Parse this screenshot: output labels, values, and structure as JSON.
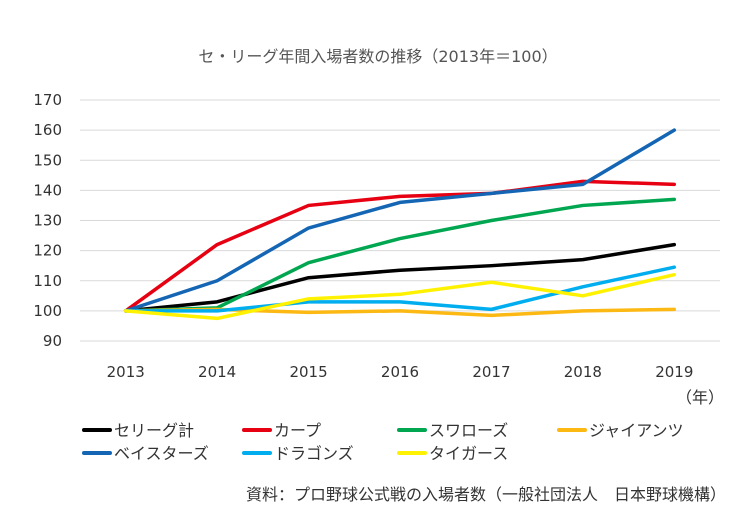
{
  "chart_data": {
    "type": "line",
    "title": "セ・リーグ年間入場者数の推移（2013年＝100）",
    "x": [
      "2013",
      "2014",
      "2015",
      "2016",
      "2017",
      "2018",
      "2019"
    ],
    "x_unit": "（年）",
    "ylim": [
      90,
      170
    ],
    "yticks": [
      90,
      100,
      110,
      120,
      130,
      140,
      150,
      160,
      170
    ],
    "grid": true,
    "legend_position": "bottom",
    "series": [
      {
        "name": "セリーグ計",
        "color": "#000000",
        "values": [
          100,
          103,
          111,
          113.5,
          115,
          117,
          122
        ]
      },
      {
        "name": "カープ",
        "color": "#e60012",
        "values": [
          100,
          122,
          135,
          138,
          139,
          143,
          142
        ]
      },
      {
        "name": "スワローズ",
        "color": "#00a650",
        "values": [
          100,
          101,
          116,
          124,
          130,
          135,
          137
        ]
      },
      {
        "name": "ジャイアンツ",
        "color": "#fcb813",
        "values": [
          100,
          100.5,
          99.5,
          100,
          98.5,
          100,
          100.5
        ]
      },
      {
        "name": "ベイスターズ",
        "color": "#1466b4",
        "values": [
          100,
          110,
          127.5,
          136,
          139,
          142,
          160
        ]
      },
      {
        "name": "ドラゴンズ",
        "color": "#00aeef",
        "values": [
          100,
          100,
          103,
          103,
          100.5,
          108,
          114.5
        ]
      },
      {
        "name": "タイガース",
        "color": "#fff200",
        "values": [
          100,
          97.5,
          104,
          105.5,
          109.5,
          105,
          112
        ]
      }
    ],
    "source": "資料：プロ野球公式戦の入場者数（一般社団法人　日本野球機構）"
  }
}
